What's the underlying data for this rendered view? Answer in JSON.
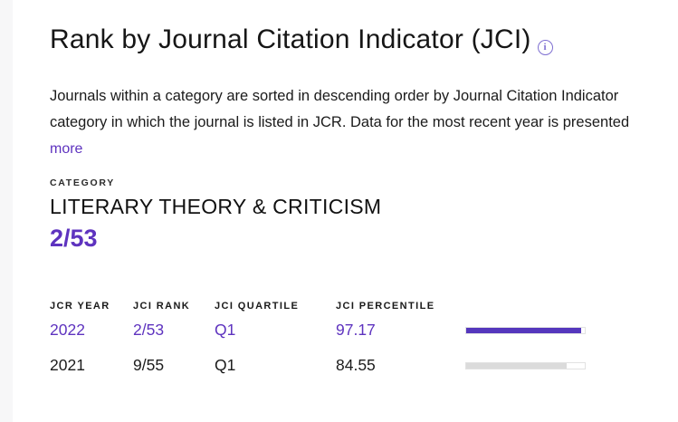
{
  "colors": {
    "accent": "#5e33bf",
    "bar_current": "#5537bd",
    "bar_past": "#dbdbdb",
    "info_icon": "#7e6fd1"
  },
  "header": {
    "title": "Rank by Journal Citation Indicator (JCI)",
    "info_glyph": "i"
  },
  "description": {
    "line1": "Journals within a category are sorted in descending order by Journal Citation Indicator",
    "line2": "category in which the journal is listed in JCR. Data for the most recent year is presented",
    "more_label": "more"
  },
  "category": {
    "label": "CATEGORY",
    "name": "LITERARY THEORY & CRITICISM",
    "rank": "2/53"
  },
  "table": {
    "columns": [
      "JCR YEAR",
      "JCI RANK",
      "JCI QUARTILE",
      "JCI PERCENTILE"
    ],
    "rows": [
      {
        "year": "2022",
        "rank": "2/53",
        "quartile": "Q1",
        "percentile": "97.17",
        "bar_percent": 97.17
      },
      {
        "year": "2021",
        "rank": "9/55",
        "quartile": "Q1",
        "percentile": "84.55",
        "bar_percent": 84.55
      }
    ]
  }
}
